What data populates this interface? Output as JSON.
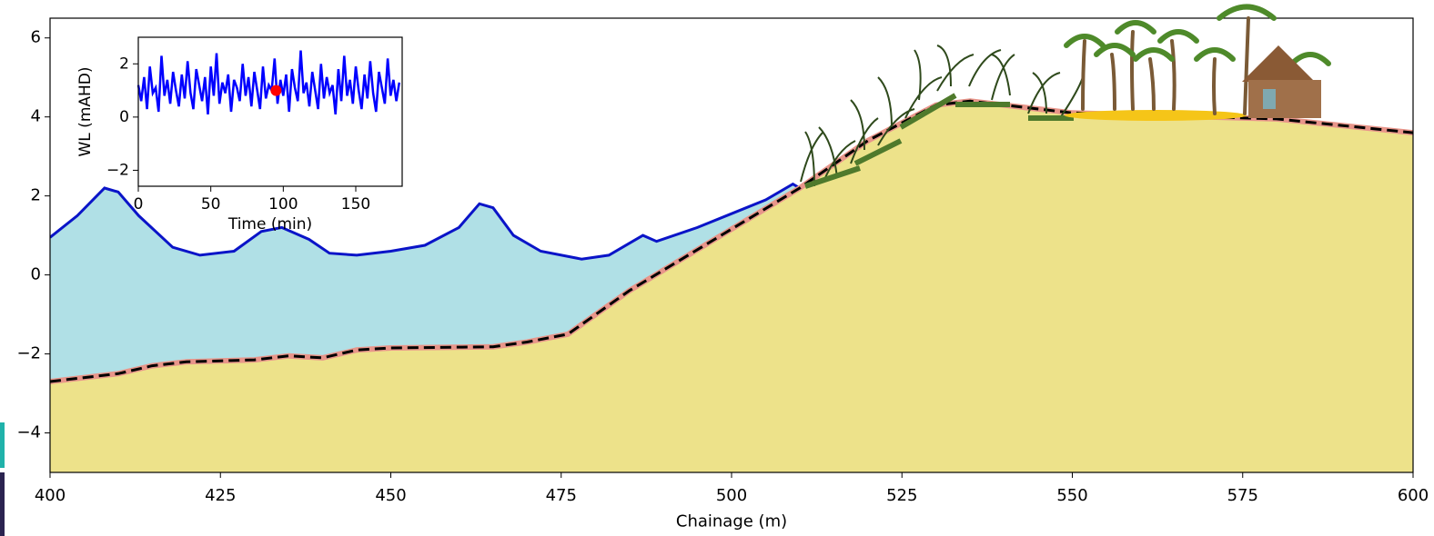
{
  "chart_data": [
    {
      "type": "line",
      "xlabel": "Chainage (m)",
      "xlim": [
        400,
        600
      ],
      "ylim": [
        -5,
        6.5
      ],
      "xticks": [
        400,
        425,
        450,
        475,
        500,
        525,
        550,
        575,
        600
      ],
      "yticks": [
        {
          "value": -4,
          "label": "−4"
        },
        {
          "value": -2,
          "label": "−2"
        },
        0,
        2,
        4,
        6
      ],
      "series": [
        {
          "color": "#0a14c8",
          "fill": "#b0e0e6",
          "x": [
            400,
            404,
            408,
            410,
            413,
            418,
            422,
            427,
            431,
            434,
            438,
            441,
            445,
            450,
            455,
            460,
            463,
            465,
            468,
            472,
            478,
            482,
            485,
            487,
            489,
            495,
            500,
            505,
            509,
            510
          ],
          "values": [
            0.95,
            1.5,
            2.2,
            2.1,
            1.5,
            0.7,
            0.5,
            0.6,
            1.1,
            1.2,
            0.9,
            0.55,
            0.5,
            0.6,
            0.75,
            1.2,
            1.8,
            1.7,
            1.0,
            0.6,
            0.4,
            0.5,
            0.8,
            1.0,
            0.85,
            1.2,
            1.55,
            1.9,
            2.3,
            2.2
          ]
        },
        {
          "color": "#000000",
          "edge_color": "#e8958a",
          "fill": "#ede28a",
          "dashed": true,
          "x": [
            400,
            410,
            415,
            420,
            430,
            435,
            440,
            445,
            450,
            465,
            470,
            476,
            485,
            510,
            520,
            530,
            535,
            550,
            570,
            580,
            600
          ],
          "values": [
            -2.7,
            -2.5,
            -2.3,
            -2.2,
            -2.15,
            -2.05,
            -2.1,
            -1.9,
            -1.85,
            -1.82,
            -1.7,
            -1.5,
            -0.4,
            2.2,
            3.4,
            4.3,
            4.4,
            4.1,
            4.0,
            3.95,
            3.6
          ]
        }
      ]
    },
    {
      "type": "line",
      "xlabel": "Time (min)",
      "ylabel": "WL (mAHD)",
      "xlim": [
        0,
        182
      ],
      "ylim": [
        -2.6,
        3
      ],
      "xticks": [
        0,
        50,
        100,
        150
      ],
      "yticks": [
        {
          "value": -2,
          "label": "−2"
        },
        0,
        2
      ],
      "series": [
        {
          "color": "#0000ff",
          "x": [
            0,
            2,
            4,
            6,
            8,
            10,
            12,
            14,
            16,
            18,
            20,
            22,
            24,
            26,
            28,
            30,
            32,
            34,
            36,
            38,
            40,
            42,
            44,
            46,
            48,
            50,
            52,
            54,
            56,
            58,
            60,
            62,
            64,
            66,
            68,
            70,
            72,
            74,
            76,
            78,
            80,
            82,
            84,
            86,
            88,
            90,
            92,
            94,
            96,
            98,
            100,
            102,
            104,
            106,
            108,
            110,
            112,
            114,
            116,
            118,
            120,
            122,
            124,
            126,
            128,
            130,
            132,
            134,
            136,
            138,
            140,
            142,
            144,
            146,
            148,
            150,
            152,
            154,
            156,
            158,
            160,
            162,
            164,
            166,
            168,
            170,
            172,
            174,
            176,
            178,
            180
          ],
          "values": [
            1.2,
            0.6,
            1.5,
            0.3,
            1.9,
            0.9,
            1.1,
            0.2,
            2.3,
            0.8,
            1.4,
            0.5,
            1.7,
            1.0,
            0.4,
            1.6,
            0.7,
            2.1,
            0.9,
            0.3,
            1.8,
            1.2,
            0.6,
            1.5,
            0.1,
            1.9,
            0.8,
            2.4,
            0.5,
            1.3,
            0.9,
            1.6,
            0.2,
            1.4,
            1.1,
            0.6,
            2.0,
            0.8,
            1.5,
            0.4,
            1.7,
            1.0,
            0.3,
            1.9,
            0.7,
            1.2,
            1.0,
            2.2,
            0.5,
            1.4,
            0.8,
            1.6,
            0.2,
            1.8,
            1.1,
            0.6,
            2.5,
            0.9,
            1.3,
            0.4,
            1.7,
            1.0,
            0.3,
            2.0,
            0.7,
            1.5,
            0.9,
            1.2,
            0.1,
            1.8,
            0.6,
            2.3,
            0.8,
            1.4,
            0.5,
            1.9,
            1.0,
            0.3,
            1.6,
            0.7,
            2.1,
            0.9,
            0.2,
            1.7,
            1.1,
            0.5,
            2.2,
            0.8,
            1.4,
            0.6,
            1.3
          ]
        }
      ],
      "marker": {
        "x": 95,
        "y": 1.0,
        "color": "#ff0000"
      }
    }
  ]
}
